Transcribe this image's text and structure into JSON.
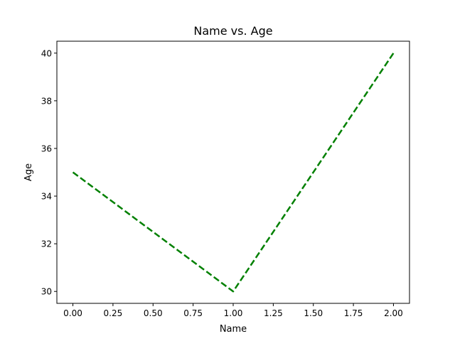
{
  "chart_data": {
    "type": "line",
    "title": "Name vs. Age",
    "xlabel": "Name",
    "ylabel": "Age",
    "x": [
      0,
      1,
      2
    ],
    "series": [
      {
        "values": [
          35,
          30,
          40
        ],
        "color": "#008000",
        "line_style": "dashed"
      }
    ],
    "xlim": [
      -0.1,
      2.1
    ],
    "ylim": [
      29.5,
      40.5
    ],
    "xticks": [
      "0.00",
      "0.25",
      "0.50",
      "0.75",
      "1.00",
      "1.25",
      "1.50",
      "1.75",
      "2.00"
    ],
    "yticks": [
      "30",
      "32",
      "34",
      "36",
      "38",
      "40"
    ],
    "grid": false
  }
}
